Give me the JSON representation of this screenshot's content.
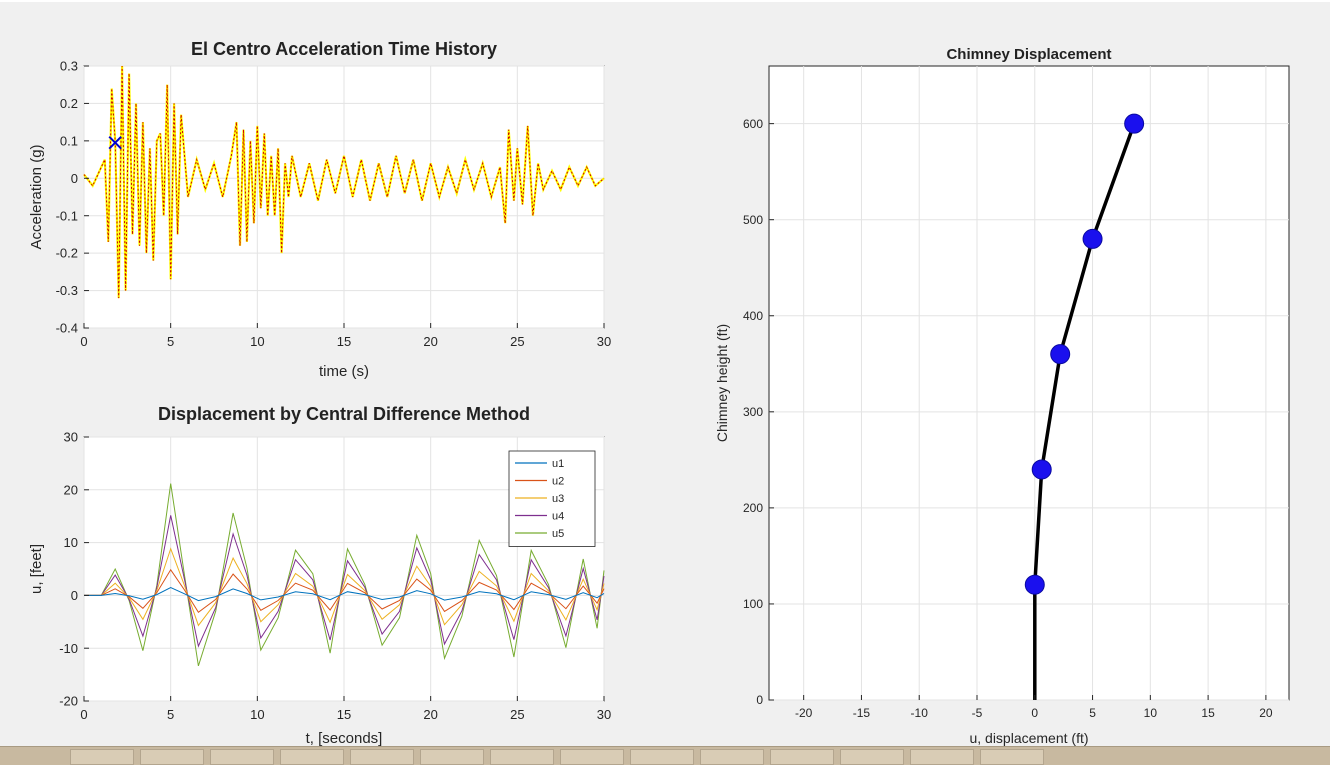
{
  "chart_data": [
    {
      "type": "line",
      "title": "El Centro Acceleration Time History",
      "xlabel": "time (s)",
      "ylabel": "Acceleration (g)",
      "xlim": [
        0,
        30
      ],
      "ylim": [
        -0.4,
        0.3
      ],
      "xticks": [
        0,
        5,
        10,
        15,
        20,
        25,
        30
      ],
      "yticks": [
        -0.4,
        -0.3,
        -0.2,
        -0.1,
        0,
        0.1,
        0.2,
        0.3
      ],
      "grid": true,
      "colors": {
        "signal": "#ffff00",
        "overlay": "#cc0000",
        "marker": "#0000cc"
      },
      "marker": {
        "x": 1.8,
        "y": 0.095,
        "symbol": "x"
      },
      "series": [
        {
          "style": "yellow solid + red dotted",
          "x": [
            0,
            0.5,
            1.0,
            1.2,
            1.4,
            1.6,
            1.8,
            2.0,
            2.2,
            2.4,
            2.6,
            2.8,
            3.0,
            3.2,
            3.4,
            3.6,
            3.8,
            4.0,
            4.2,
            4.4,
            4.6,
            4.8,
            5.0,
            5.2,
            5.4,
            5.6,
            6.0,
            6.5,
            7.0,
            7.5,
            8.0,
            8.5,
            8.8,
            9.0,
            9.2,
            9.4,
            9.6,
            9.8,
            10.0,
            10.2,
            10.4,
            10.6,
            10.8,
            11.0,
            11.2,
            11.4,
            11.6,
            11.8,
            12.0,
            12.5,
            13.0,
            13.5,
            14.0,
            14.5,
            15.0,
            15.5,
            16.0,
            16.5,
            17.0,
            17.5,
            18.0,
            18.5,
            19.0,
            19.5,
            20.0,
            20.5,
            21.0,
            21.5,
            22.0,
            22.5,
            23.0,
            23.5,
            24.0,
            24.3,
            24.5,
            24.8,
            25.0,
            25.3,
            25.6,
            25.9,
            26.2,
            26.5,
            27.0,
            27.5,
            28.0,
            28.5,
            29.0,
            29.5,
            30.0
          ],
          "y": [
            0.01,
            -0.02,
            0.03,
            0.05,
            -0.17,
            0.24,
            0.1,
            -0.32,
            0.3,
            -0.3,
            0.28,
            -0.15,
            0.2,
            -0.18,
            0.15,
            -0.2,
            0.08,
            -0.22,
            0.1,
            0.12,
            -0.1,
            0.25,
            -0.27,
            0.2,
            -0.15,
            0.17,
            -0.05,
            0.05,
            -0.03,
            0.04,
            -0.05,
            0.06,
            0.15,
            -0.18,
            0.13,
            -0.17,
            0.1,
            -0.12,
            0.14,
            -0.08,
            0.12,
            -0.1,
            0.06,
            -0.1,
            0.08,
            -0.2,
            0.04,
            -0.05,
            0.06,
            -0.05,
            0.04,
            -0.06,
            0.05,
            -0.04,
            0.06,
            -0.05,
            0.05,
            -0.06,
            0.04,
            -0.05,
            0.06,
            -0.04,
            0.05,
            -0.06,
            0.04,
            -0.05,
            0.03,
            -0.04,
            0.05,
            -0.03,
            0.04,
            -0.05,
            0.03,
            -0.12,
            0.13,
            -0.06,
            0.08,
            -0.07,
            0.14,
            -0.1,
            0.04,
            -0.03,
            0.02,
            -0.03,
            0.03,
            -0.02,
            0.03,
            -0.02,
            0
          ]
        }
      ]
    },
    {
      "type": "line",
      "title": "Displacement by Central Difference Method",
      "xlabel": "t, [seconds]",
      "ylabel": "u, [feet]",
      "xlim": [
        0,
        30
      ],
      "ylim": [
        -20,
        30
      ],
      "xticks": [
        0,
        5,
        10,
        15,
        20,
        25,
        30
      ],
      "yticks": [
        -20,
        -10,
        0,
        10,
        20,
        30
      ],
      "grid": true,
      "legend": "top-right",
      "x": [
        0,
        1,
        1.8,
        2.6,
        3.4,
        4.2,
        5.0,
        5.8,
        6.6,
        7.6,
        8.6,
        9.4,
        10.2,
        11.2,
        12.2,
        13.2,
        14.2,
        15.2,
        16.2,
        17.2,
        18.2,
        19.2,
        20.0,
        20.8,
        21.8,
        22.8,
        23.8,
        24.8,
        25.8,
        26.8,
        27.8,
        28.8,
        29.6,
        30
      ],
      "base": [
        0,
        0,
        0.25,
        -0.05,
        -0.5,
        0.1,
        1,
        0.2,
        -0.65,
        -0.15,
        0.8,
        0.25,
        -0.55,
        -0.2,
        0.45,
        0.2,
        -0.55,
        0.45,
        0.1,
        -0.5,
        -0.2,
        0.6,
        0.2,
        -0.6,
        -0.2,
        0.5,
        0.2,
        -0.55,
        0.45,
        0.1,
        -0.5,
        0.35,
        -0.3,
        0.25
      ],
      "series": [
        {
          "name": "u1",
          "color": "#0072bd",
          "scale": 1.5
        },
        {
          "name": "u2",
          "color": "#d95319",
          "scale": 5
        },
        {
          "name": "u3",
          "color": "#edb120",
          "scale": 9
        },
        {
          "name": "u4",
          "color": "#7e2f8e",
          "scale": 15
        },
        {
          "name": "u5",
          "color": "#77ac30",
          "scale": 20
        }
      ]
    },
    {
      "type": "line",
      "title": "Chimney Displacement",
      "xlabel": "u, displacement (ft)",
      "ylabel": "Chimney height (ft)",
      "xlim": [
        -23,
        22
      ],
      "ylim": [
        0,
        660
      ],
      "xticks": [
        -20,
        -15,
        -10,
        -5,
        0,
        5,
        10,
        15,
        20
      ],
      "yticks": [
        0,
        100,
        200,
        300,
        400,
        500,
        600
      ],
      "grid": true,
      "colors": {
        "line": "#000000",
        "points": "#1a10ee"
      },
      "x": [
        0,
        0,
        0.6,
        2.2,
        5.0,
        8.6
      ],
      "y": [
        0,
        120,
        240,
        360,
        480,
        600
      ]
    }
  ]
}
